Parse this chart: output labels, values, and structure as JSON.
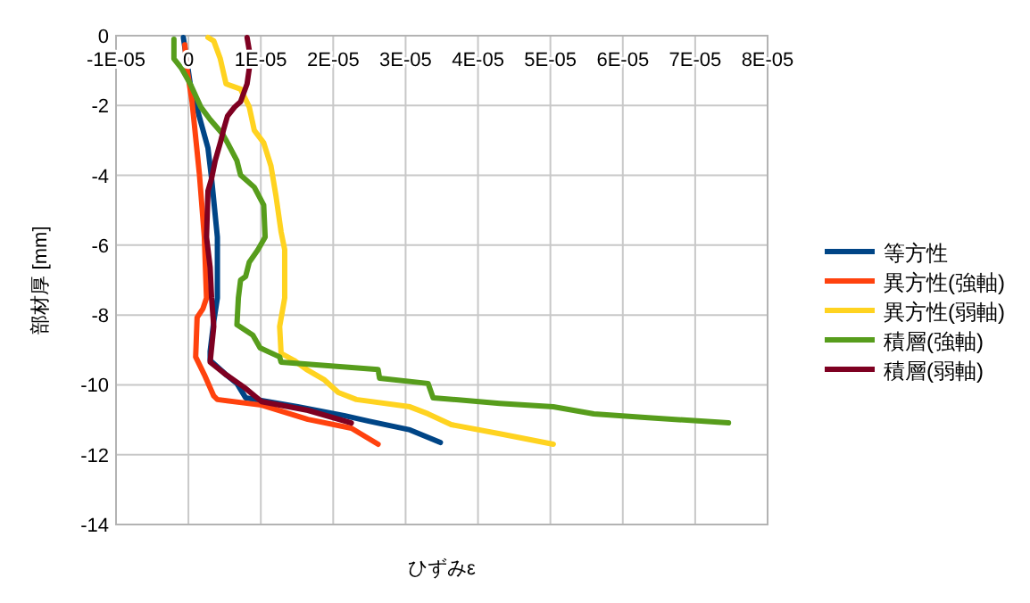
{
  "chart_data": {
    "type": "line",
    "xlabel": "ひずみε",
    "ylabel": "部材厚 [mm]",
    "xlim": [
      -1e-05,
      8e-05
    ],
    "ylim": [
      -14,
      0
    ],
    "xticks": [
      {
        "value": -1e-05,
        "label": "-1E-05"
      },
      0,
      {
        "value": 1e-05,
        "label": "1E-05"
      },
      {
        "value": 2e-05,
        "label": "2E-05"
      },
      {
        "value": 3e-05,
        "label": "3E-05"
      },
      {
        "value": 4e-05,
        "label": "4E-05"
      },
      {
        "value": 5e-05,
        "label": "5E-05"
      },
      {
        "value": 6e-05,
        "label": "6E-05"
      },
      {
        "value": 7e-05,
        "label": "7E-05"
      },
      {
        "value": 8e-05,
        "label": "8E-05"
      }
    ],
    "yticks": [
      0,
      -2,
      -4,
      -6,
      -8,
      -10,
      -12,
      -14
    ],
    "grid": true,
    "legend": "right",
    "series": [
      {
        "name": "等方性",
        "color": "#004586",
        "x": [
          -7e-07,
          2.5e-07,
          2.7e-06,
          3.2e-06,
          4e-06,
          4e-06,
          3.5e-06,
          3e-06,
          3e-06,
          5.2e-06,
          6.7e-06,
          7.9e-06,
          1.51e-05,
          2.15e-05,
          2.49e-05,
          3.06e-05,
          3.48e-05
        ],
        "values": [
          -0.05,
          -1.38,
          -3.22,
          -4.09,
          -5.77,
          -7.51,
          -8.18,
          -9.04,
          -9.3,
          -9.71,
          -9.96,
          -10.37,
          -10.63,
          -10.88,
          -11.04,
          -11.29,
          -11.65
        ]
      },
      {
        "name": "異方性(強軸)",
        "color": "#ff420e",
        "x": [
          -5e-07,
          -2.5e-07,
          5e-07,
          1.5e-06,
          2.2e-06,
          2.5e-06,
          2e-06,
          1.2e-06,
          1e-06,
          2.2e-06,
          3.5e-06,
          4e-06,
          1.01e-05,
          1.65e-05,
          2.25e-05,
          2.62e-05
        ],
        "values": [
          -0.26,
          -0.87,
          -1.89,
          -3.93,
          -5.77,
          -7.51,
          -7.82,
          -8.07,
          -9.2,
          -9.71,
          -10.32,
          -10.42,
          -10.58,
          -10.99,
          -11.24,
          -11.7
        ]
      },
      {
        "name": "異方性(弱軸)",
        "color": "#ffd320",
        "x": [
          2.7e-06,
          3.5e-06,
          4.4e-06,
          5.2e-06,
          7.2e-06,
          8.4e-06,
          9.1e-06,
          1.04e-05,
          1.14e-05,
          1.21e-05,
          1.28e-05,
          1.33e-05,
          1.33e-05,
          1.26e-05,
          1.28e-05,
          1.46e-05,
          1.63e-05,
          1.88e-05,
          2.07e-05,
          2.32e-05,
          3.06e-05,
          3.31e-05,
          3.63e-05,
          4.3e-05,
          5.04e-05
        ],
        "values": [
          -0.05,
          -0.15,
          -0.66,
          -1.38,
          -1.53,
          -2.04,
          -2.71,
          -3.07,
          -3.73,
          -4.6,
          -5.62,
          -6.13,
          -7.51,
          -8.33,
          -9.1,
          -9.3,
          -9.56,
          -9.86,
          -10.22,
          -10.42,
          -10.63,
          -10.83,
          -11.14,
          -11.4,
          -11.7
        ]
      },
      {
        "name": "積層(強軸)",
        "color": "#579d1c",
        "x": [
          -2e-06,
          -2e-06,
          -1e-06,
          2.5e-07,
          1.7e-06,
          3e-06,
          4.7e-06,
          5.4e-06,
          6.7e-06,
          7.2e-06,
          9.1e-06,
          1.04e-05,
          1.06e-05,
          9.6e-06,
          8.4e-06,
          7.9e-06,
          7.2e-06,
          6.9e-06,
          6.7e-06,
          8.9e-06,
          9.9e-06,
          1.26e-05,
          1.28e-05,
          2.62e-05,
          2.64e-05,
          3.31e-05,
          3.38e-05,
          4.3e-05,
          5.04e-05,
          5.6e-05,
          6.35e-05,
          7.46e-05
        ],
        "values": [
          -0.1,
          -0.66,
          -0.92,
          -1.38,
          -2.04,
          -2.4,
          -2.81,
          -3.07,
          -3.58,
          -3.99,
          -4.34,
          -4.85,
          -5.77,
          -6.13,
          -6.49,
          -6.9,
          -7.0,
          -7.51,
          -8.28,
          -8.58,
          -8.94,
          -9.2,
          -9.35,
          -9.56,
          -9.81,
          -9.96,
          -10.37,
          -10.53,
          -10.63,
          -10.83,
          -10.94,
          -11.09
        ]
      },
      {
        "name": "積層(弱軸)",
        "color": "#7e0021",
        "x": [
          8.1e-06,
          8.6e-06,
          8.1e-06,
          7.2e-06,
          6.4e-06,
          5.4e-06,
          4.9e-06,
          4.4e-06,
          3.7e-06,
          3.2e-06,
          2.7e-06,
          2.5e-06,
          3e-06,
          3.2e-06,
          3.5e-06,
          3e-06,
          5.2e-06,
          7.7e-06,
          1.01e-05,
          1.65e-05,
          2.25e-05
        ],
        "values": [
          -0.05,
          -0.66,
          -1.38,
          -1.89,
          -2.04,
          -2.3,
          -2.66,
          -3.07,
          -3.58,
          -4.09,
          -4.45,
          -5.77,
          -6.64,
          -7.51,
          -8.33,
          -9.35,
          -9.71,
          -10.07,
          -10.48,
          -10.73,
          -11.09
        ]
      }
    ]
  }
}
